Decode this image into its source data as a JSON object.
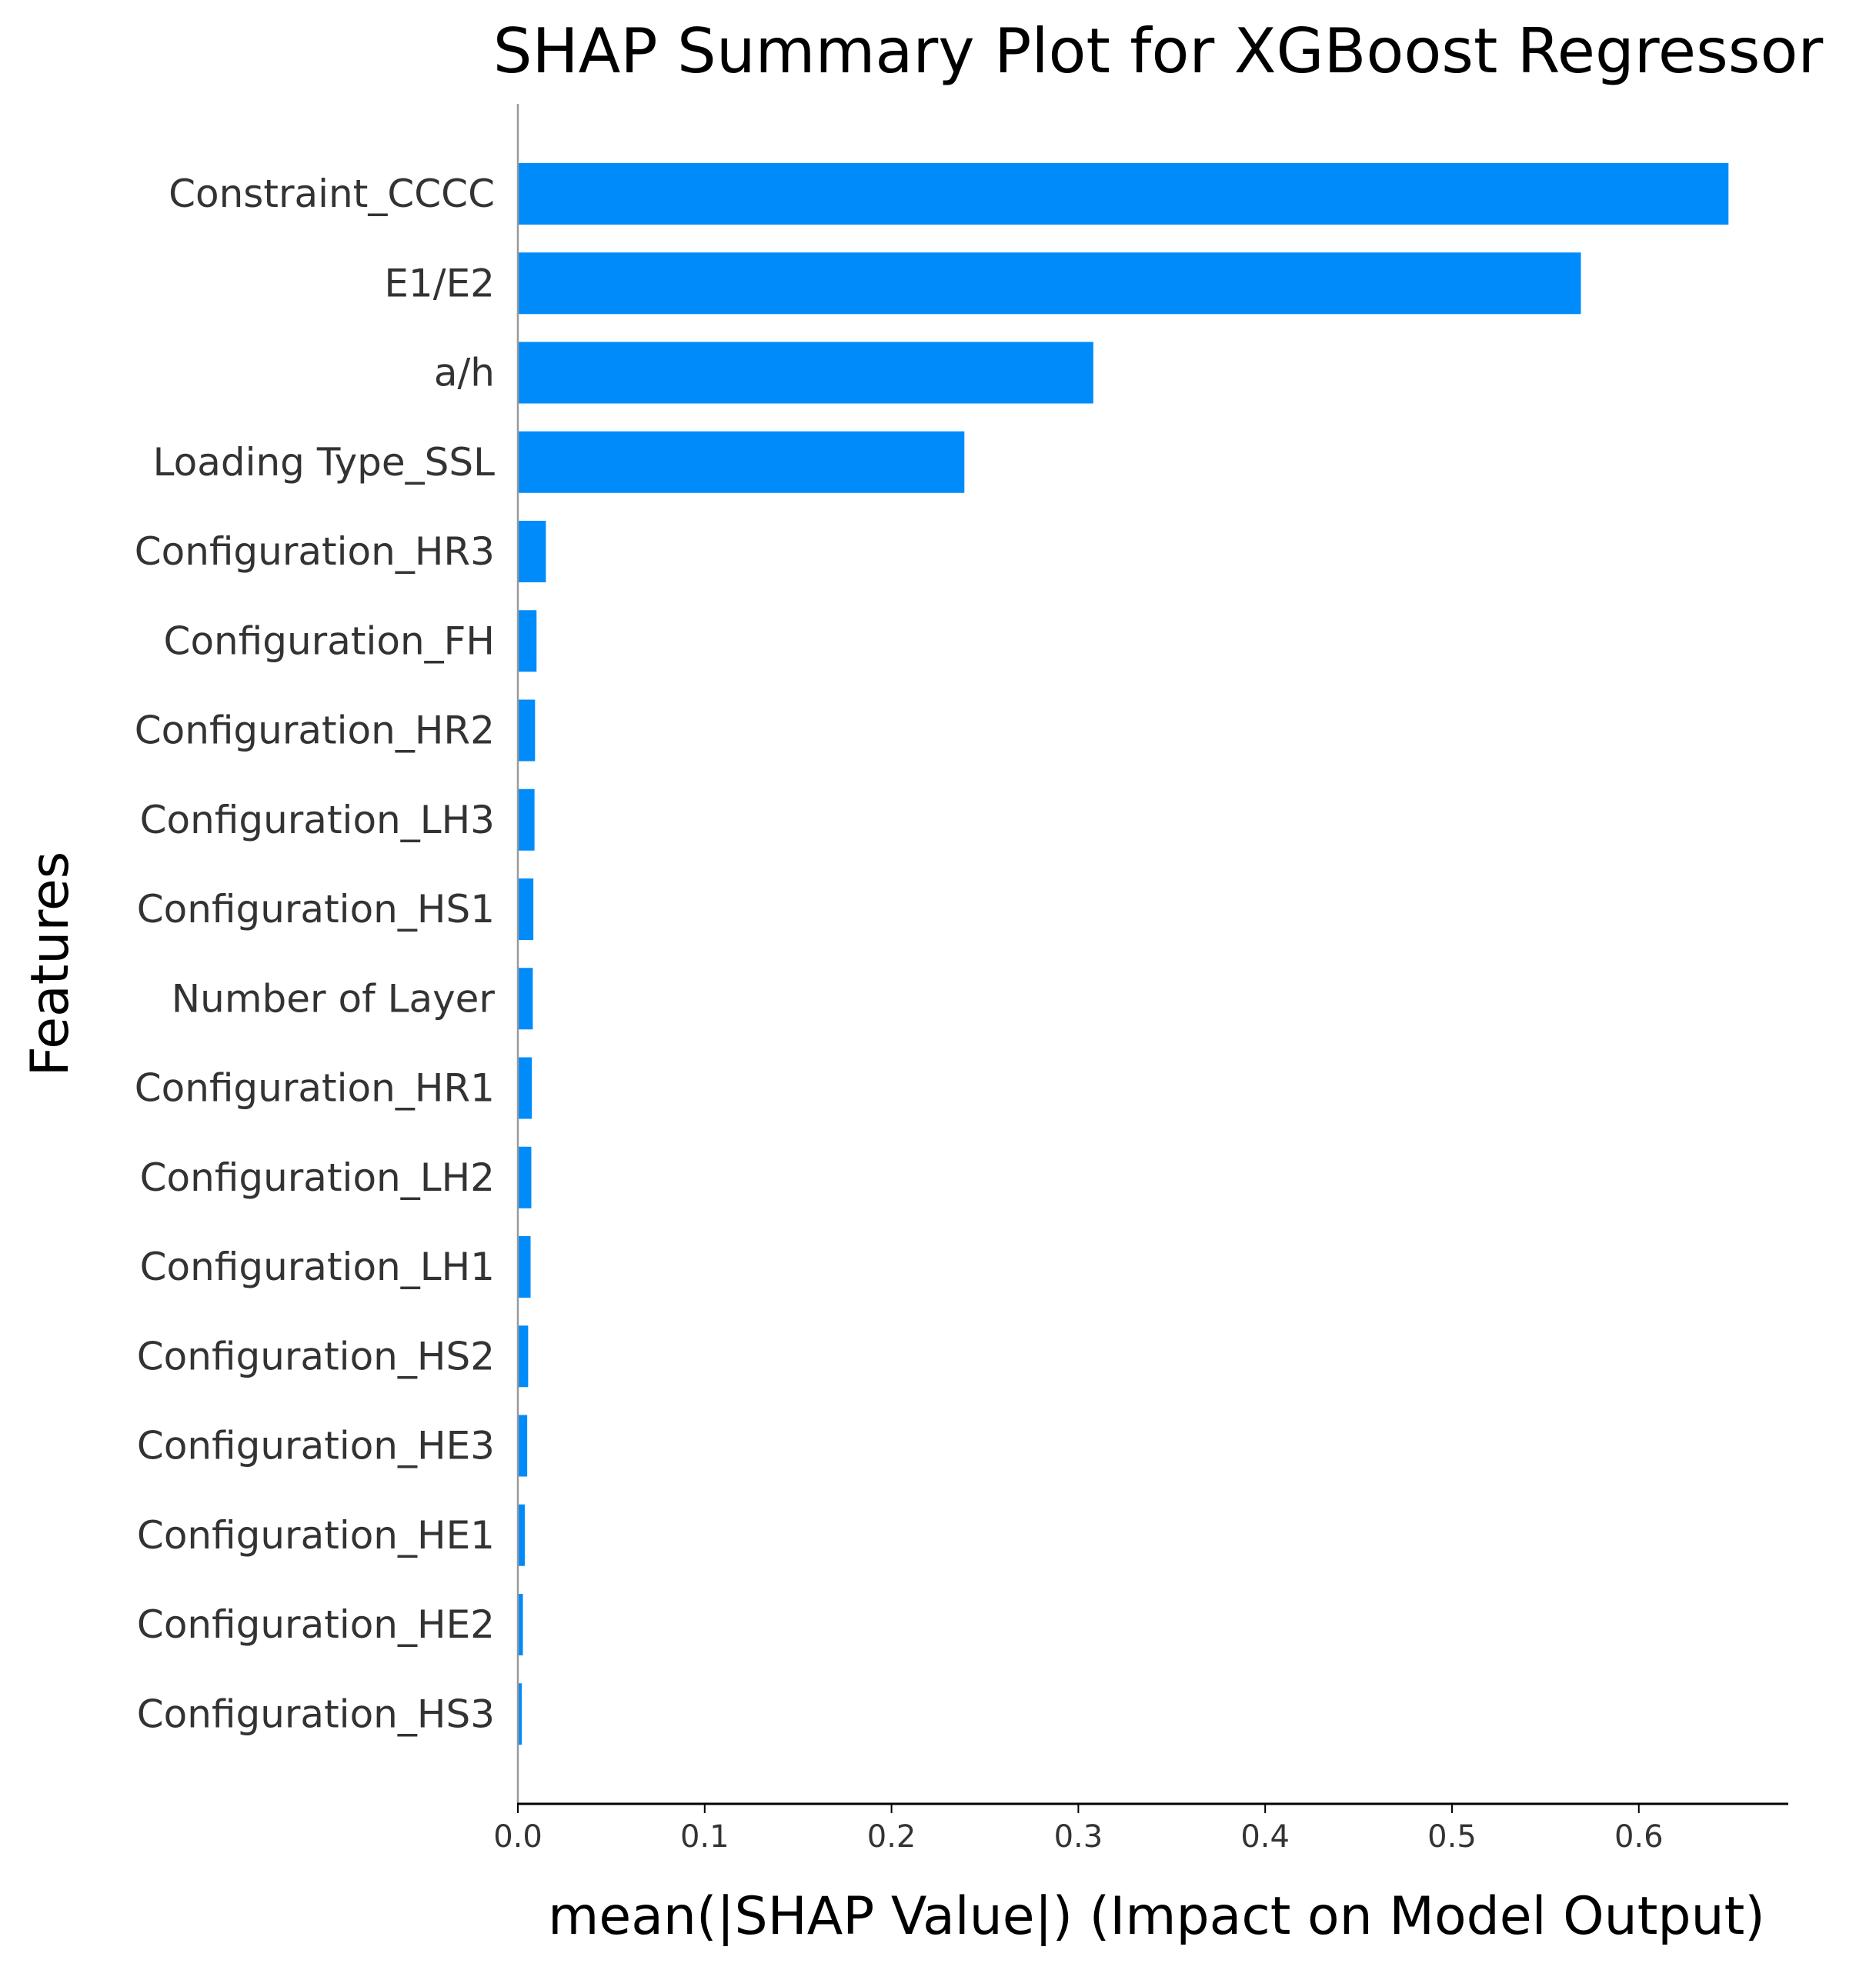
{
  "chart_data": {
    "type": "bar",
    "orientation": "horizontal",
    "title": "SHAP Summary Plot for XGBoost Regressor",
    "xlabel": "mean(|SHAP Value|) (Impact on Model Output)",
    "ylabel": "Features",
    "categories": [
      "Constraint_CCCC",
      "E1/E2",
      "a/h",
      "Loading Type_SSL",
      "Configuration_HR3",
      "Configuration_FH",
      "Configuration_HR2",
      "Configuration_LH3",
      "Configuration_HS1",
      "Number of Layer",
      "Configuration_HR1",
      "Configuration_LH2",
      "Configuration_LH1",
      "Configuration_HS2",
      "Configuration_HE3",
      "Configuration_HE1",
      "Configuration_HE2",
      "Configuration_HS3"
    ],
    "values": [
      0.648,
      0.569,
      0.308,
      0.239,
      0.015,
      0.01,
      0.0092,
      0.0089,
      0.0083,
      0.008,
      0.0075,
      0.0072,
      0.0068,
      0.0055,
      0.005,
      0.0037,
      0.0027,
      0.0021
    ],
    "xlim": [
      0,
      0.68
    ],
    "xticks": [
      0.0,
      0.1,
      0.2,
      0.3,
      0.4,
      0.5,
      0.6
    ],
    "xtick_labels": [
      "0.0",
      "0.1",
      "0.2",
      "0.3",
      "0.4",
      "0.5",
      "0.6"
    ],
    "bar_color": "#008bfb",
    "grid": false,
    "legend": "none"
  }
}
